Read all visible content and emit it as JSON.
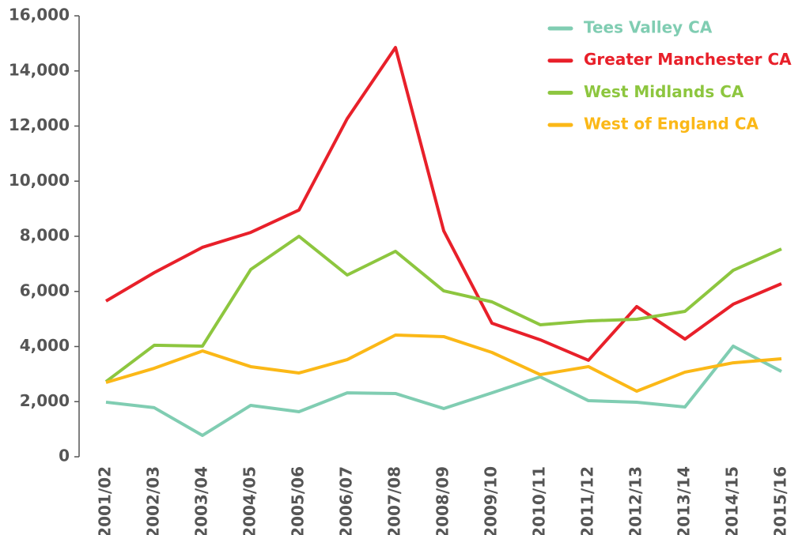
{
  "chart_data": {
    "type": "line",
    "categories": [
      "2001/02",
      "2002/03",
      "2003/04",
      "2004/05",
      "2005/06",
      "2006/07",
      "2007/08",
      "2008/09",
      "2009/10",
      "2010/11",
      "2011/12",
      "2012/13",
      "2013/14",
      "2014/15",
      "2015/16"
    ],
    "series": [
      {
        "name": "Tees Valley CA",
        "color": "#80cdb2",
        "values": [
          1980,
          1780,
          775,
          1865,
          1635,
          2320,
          2295,
          1750,
          2320,
          2900,
          2035,
          1980,
          1805,
          4015,
          3095
        ]
      },
      {
        "name": "Greater Manchester CA",
        "color": "#e8202a",
        "values": [
          5650,
          6680,
          7600,
          8140,
          8950,
          12270,
          14850,
          8200,
          4845,
          4245,
          3500,
          5450,
          4270,
          5535,
          6280
        ]
      },
      {
        "name": "West Midlands CA",
        "color": "#8dc63f",
        "values": [
          2725,
          4045,
          4015,
          6795,
          8000,
          6595,
          7455,
          6020,
          5620,
          4790,
          4930,
          4990,
          5275,
          6765,
          7540
        ]
      },
      {
        "name": "West of England CA",
        "color": "#fbb817",
        "values": [
          2695,
          3210,
          3840,
          3270,
          3040,
          3525,
          4415,
          4360,
          3785,
          2980,
          3270,
          2380,
          3070,
          3410,
          3555
        ]
      }
    ],
    "ylim": [
      0,
      16000
    ],
    "yticks": [
      0,
      {
        "value": 2000,
        "label": "2,000"
      },
      {
        "value": 4000,
        "label": "4,000"
      },
      {
        "value": 6000,
        "label": "6,000"
      },
      {
        "value": 8000,
        "label": "8,000"
      },
      {
        "value": 10000,
        "label": "10,000"
      },
      {
        "value": 12000,
        "label": "12,000"
      },
      {
        "value": 14000,
        "label": "14,000"
      },
      {
        "value": 16000,
        "label": "16,000"
      }
    ],
    "legend": "top-right"
  }
}
